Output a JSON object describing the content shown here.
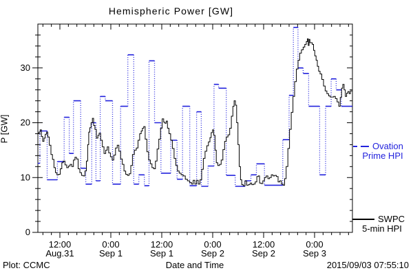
{
  "title": "Hemispheric Power [GW]",
  "footer": {
    "plot_credit": "Plot: CCMC",
    "timestamp": "2015/09/03 07:55:10"
  },
  "legend": {
    "ovation": {
      "line1": "Ovation",
      "line2": "Prime HPI",
      "color": "#2222dd"
    },
    "swpc": {
      "line1": "SWPC",
      "line2": "5-min HPI",
      "color": "#000000"
    }
  },
  "chart_data": {
    "type": "line",
    "title": "Hemispheric Power [GW]",
    "xlabel": "Date and Time",
    "ylabel": "P [GW]",
    "ylim": [
      0,
      38
    ],
    "yticks": [
      0,
      10,
      20,
      30
    ],
    "y_minor_step": 2,
    "grid": false,
    "legend_position": "right-outside",
    "x_axis_note": "x values are hours since 2015-08-31 00:00 UT",
    "xlim_hours": [
      6.8,
      80.9
    ],
    "xticks": [
      {
        "t": 12,
        "time": "12:00",
        "date": "Aug.31"
      },
      {
        "t": 24,
        "time": "0:00",
        "date": "Sep 1"
      },
      {
        "t": 36,
        "time": "12:00",
        "date": "Sep 1"
      },
      {
        "t": 48,
        "time": "0:00",
        "date": "Sep 2"
      },
      {
        "t": 60,
        "time": "12:00",
        "date": "Sep 2"
      },
      {
        "t": 72,
        "time": "0:00",
        "date": "Sep 3"
      }
    ],
    "x_minor_step_hours": 2,
    "series": [
      {
        "name": "SWPC 5-min HPI",
        "color": "#000000",
        "style": "solid-step",
        "points": [
          [
            6.9,
            18.0
          ],
          [
            7.2,
            18.3
          ],
          [
            7.5,
            18.7
          ],
          [
            7.8,
            17.5
          ],
          [
            8.1,
            16.6
          ],
          [
            8.4,
            17.2
          ],
          [
            8.7,
            17.9
          ],
          [
            9.0,
            18.3
          ],
          [
            9.3,
            17.4
          ],
          [
            9.7,
            15.9
          ],
          [
            10.1,
            14.2
          ],
          [
            10.4,
            13.3
          ],
          [
            10.8,
            11.8
          ],
          [
            11.1,
            10.9
          ],
          [
            11.5,
            10.5
          ],
          [
            11.9,
            10.6
          ],
          [
            12.3,
            11.6
          ],
          [
            12.6,
            12.7
          ],
          [
            13.0,
            13.0
          ],
          [
            13.4,
            12.3
          ],
          [
            13.8,
            11.8
          ],
          [
            14.2,
            12.1
          ],
          [
            14.6,
            12.4
          ],
          [
            15.0,
            12.0
          ],
          [
            15.4,
            13.2
          ],
          [
            15.7,
            13.7
          ],
          [
            16.1,
            13.4
          ],
          [
            16.5,
            11.6
          ],
          [
            16.9,
            10.9
          ],
          [
            17.3,
            10.4
          ],
          [
            17.7,
            10.3
          ],
          [
            18.1,
            11.2
          ],
          [
            18.4,
            13.0
          ],
          [
            18.7,
            16.0
          ],
          [
            18.9,
            18.3
          ],
          [
            19.2,
            19.1
          ],
          [
            19.5,
            20.0
          ],
          [
            19.8,
            20.8
          ],
          [
            20.1,
            19.5
          ],
          [
            20.4,
            18.8
          ],
          [
            20.8,
            17.2
          ],
          [
            21.1,
            17.7
          ],
          [
            21.4,
            18.1
          ],
          [
            21.8,
            16.8
          ],
          [
            22.2,
            15.6
          ],
          [
            22.6,
            14.4
          ],
          [
            23.0,
            15.0
          ],
          [
            23.3,
            15.6
          ],
          [
            23.7,
            14.5
          ],
          [
            24.1,
            13.8
          ],
          [
            24.5,
            13.2
          ],
          [
            24.9,
            14.1
          ],
          [
            25.3,
            15.4
          ],
          [
            25.7,
            15.9
          ],
          [
            26.1,
            14.8
          ],
          [
            26.5,
            13.4
          ],
          [
            26.9,
            12.4
          ],
          [
            27.3,
            11.2
          ],
          [
            27.7,
            10.6
          ],
          [
            28.1,
            10.4
          ],
          [
            28.5,
            10.7
          ],
          [
            28.9,
            12.2
          ],
          [
            29.3,
            14.2
          ],
          [
            29.8,
            15.0
          ],
          [
            30.2,
            15.4
          ],
          [
            30.6,
            16.8
          ],
          [
            31.0,
            18.0
          ],
          [
            31.3,
            18.5
          ],
          [
            31.6,
            19.0
          ],
          [
            31.9,
            19.3
          ],
          [
            32.3,
            17.0
          ],
          [
            32.7,
            14.7
          ],
          [
            33.1,
            13.2
          ],
          [
            33.5,
            12.5
          ],
          [
            33.9,
            11.8
          ],
          [
            34.3,
            11.6
          ],
          [
            34.7,
            13.0
          ],
          [
            35.1,
            15.2
          ],
          [
            35.5,
            17.0
          ],
          [
            35.9,
            19.0
          ],
          [
            36.3,
            20.7
          ],
          [
            36.6,
            20.1
          ],
          [
            36.9,
            19.9
          ],
          [
            37.2,
            20.3
          ],
          [
            37.5,
            19.0
          ],
          [
            37.9,
            18.0
          ],
          [
            38.3,
            16.8
          ],
          [
            38.7,
            15.3
          ],
          [
            39.1,
            13.5
          ],
          [
            39.5,
            12.2
          ],
          [
            39.9,
            11.2
          ],
          [
            40.3,
            10.8
          ],
          [
            40.8,
            10.5
          ],
          [
            41.3,
            10.3
          ],
          [
            41.8,
            9.7
          ],
          [
            42.3,
            9.4
          ],
          [
            42.8,
            9.1
          ],
          [
            43.2,
            8.8
          ],
          [
            43.6,
            9.5
          ],
          [
            44.0,
            8.8
          ],
          [
            44.4,
            9.5
          ],
          [
            44.8,
            8.8
          ],
          [
            45.2,
            9.6
          ],
          [
            45.6,
            11.5
          ],
          [
            46.0,
            13.5
          ],
          [
            46.4,
            14.8
          ],
          [
            46.8,
            15.8
          ],
          [
            47.2,
            16.5
          ],
          [
            47.5,
            17.3
          ],
          [
            47.8,
            18.2
          ],
          [
            48.1,
            18.7
          ],
          [
            48.4,
            17.7
          ],
          [
            48.7,
            15.0
          ],
          [
            49.0,
            12.7
          ],
          [
            49.4,
            12.2
          ],
          [
            49.8,
            12.4
          ],
          [
            50.2,
            13.2
          ],
          [
            50.6,
            15.1
          ],
          [
            51.0,
            16.6
          ],
          [
            51.4,
            17.4
          ],
          [
            51.8,
            17.8
          ],
          [
            52.2,
            19.0
          ],
          [
            52.6,
            21.2
          ],
          [
            52.9,
            23.0
          ],
          [
            53.2,
            24.0
          ],
          [
            53.5,
            23.2
          ],
          [
            53.8,
            20.0
          ],
          [
            54.1,
            16.0
          ],
          [
            54.4,
            12.0
          ],
          [
            54.7,
            9.6
          ],
          [
            55.0,
            8.7
          ],
          [
            55.4,
            8.5
          ],
          [
            55.8,
            9.4
          ],
          [
            56.2,
            8.6
          ],
          [
            56.6,
            8.7
          ],
          [
            57.0,
            9.0
          ],
          [
            57.4,
            8.7
          ],
          [
            57.8,
            8.8
          ],
          [
            58.2,
            9.2
          ],
          [
            58.6,
            10.2
          ],
          [
            58.9,
            10.3
          ],
          [
            59.2,
            9.0
          ],
          [
            59.6,
            8.9
          ],
          [
            60.0,
            9.4
          ],
          [
            60.4,
            10.0
          ],
          [
            60.8,
            10.3
          ],
          [
            61.2,
            9.8
          ],
          [
            61.6,
            10.0
          ],
          [
            62.0,
            10.5
          ],
          [
            62.4,
            10.3
          ],
          [
            62.8,
            10.4
          ],
          [
            63.2,
            10.2
          ],
          [
            63.6,
            9.2
          ],
          [
            64.0,
            9.4
          ],
          [
            64.4,
            8.8
          ],
          [
            64.8,
            8.6
          ],
          [
            65.1,
            9.8
          ],
          [
            65.5,
            12.0
          ],
          [
            65.9,
            15.3
          ],
          [
            66.3,
            18.8
          ],
          [
            66.7,
            21.9
          ],
          [
            67.1,
            24.8
          ],
          [
            67.5,
            27.5
          ],
          [
            67.9,
            29.8
          ],
          [
            68.3,
            31.4
          ],
          [
            68.7,
            32.7
          ],
          [
            69.1,
            33.3
          ],
          [
            69.5,
            33.8
          ],
          [
            69.9,
            34.3
          ],
          [
            70.2,
            34.8
          ],
          [
            70.4,
            35.3
          ],
          [
            70.6,
            34.1
          ],
          [
            70.8,
            35.2
          ],
          [
            71.0,
            34.6
          ],
          [
            71.3,
            34.6
          ],
          [
            71.6,
            34.3
          ],
          [
            71.9,
            33.2
          ],
          [
            72.2,
            32.2
          ],
          [
            72.5,
            31.4
          ],
          [
            72.8,
            30.3
          ],
          [
            73.1,
            29.4
          ],
          [
            73.5,
            28.9
          ],
          [
            73.9,
            27.9
          ],
          [
            74.3,
            26.7
          ],
          [
            74.7,
            25.8
          ],
          [
            75.1,
            25.3
          ],
          [
            75.5,
            24.9
          ],
          [
            75.9,
            24.7
          ],
          [
            76.3,
            24.7
          ],
          [
            76.7,
            24.8
          ],
          [
            77.1,
            24.4
          ],
          [
            77.5,
            23.8
          ],
          [
            77.9,
            23.0
          ],
          [
            78.2,
            24.6
          ],
          [
            78.5,
            26.3
          ],
          [
            78.8,
            27.0
          ],
          [
            79.1,
            26.0
          ],
          [
            79.4,
            24.8
          ],
          [
            79.7,
            25.4
          ],
          [
            80.0,
            25.7
          ],
          [
            80.3,
            25.3
          ],
          [
            80.6,
            25.8
          ],
          [
            80.9,
            25.8
          ]
        ]
      },
      {
        "name": "Ovation Prime HPI",
        "color": "#2222dd",
        "style": "dotted-step",
        "end_t": 80.9,
        "steps": [
          [
            6.8,
            12.6
          ],
          [
            7.3,
            18.5
          ],
          [
            9.0,
            9.6
          ],
          [
            11.4,
            12.9
          ],
          [
            13.0,
            21.0
          ],
          [
            14.2,
            14.4
          ],
          [
            15.2,
            24.0
          ],
          [
            16.9,
            11.7
          ],
          [
            18.1,
            8.8
          ],
          [
            19.5,
            20.0
          ],
          [
            20.5,
            9.4
          ],
          [
            21.5,
            24.8
          ],
          [
            22.7,
            24.0
          ],
          [
            24.4,
            8.8
          ],
          [
            26.3,
            23.0
          ],
          [
            28.0,
            32.4
          ],
          [
            29.4,
            8.8
          ],
          [
            30.6,
            10.5
          ],
          [
            31.9,
            8.5
          ],
          [
            33.0,
            31.3
          ],
          [
            34.3,
            20.0
          ],
          [
            35.8,
            10.8
          ],
          [
            38.1,
            16.8
          ],
          [
            39.6,
            9.7
          ],
          [
            40.9,
            23.0
          ],
          [
            42.6,
            8.5
          ],
          [
            44.2,
            22.0
          ],
          [
            45.3,
            8.4
          ],
          [
            46.9,
            12.1
          ],
          [
            48.3,
            27.0
          ],
          [
            49.4,
            26.3
          ],
          [
            51.2,
            10.4
          ],
          [
            53.3,
            8.4
          ],
          [
            55.6,
            9.4
          ],
          [
            57.0,
            10.5
          ],
          [
            58.3,
            12.5
          ],
          [
            60.2,
            8.6
          ],
          [
            64.5,
            16.9
          ],
          [
            66.0,
            25.0
          ],
          [
            67.0,
            37.4
          ],
          [
            68.1,
            30.0
          ],
          [
            69.3,
            29.0
          ],
          [
            70.6,
            23.0
          ],
          [
            73.2,
            10.5
          ],
          [
            74.6,
            23.0
          ],
          [
            75.9,
            28.0
          ],
          [
            77.1,
            26.0
          ],
          [
            78.3,
            23.0
          ]
        ]
      }
    ]
  }
}
